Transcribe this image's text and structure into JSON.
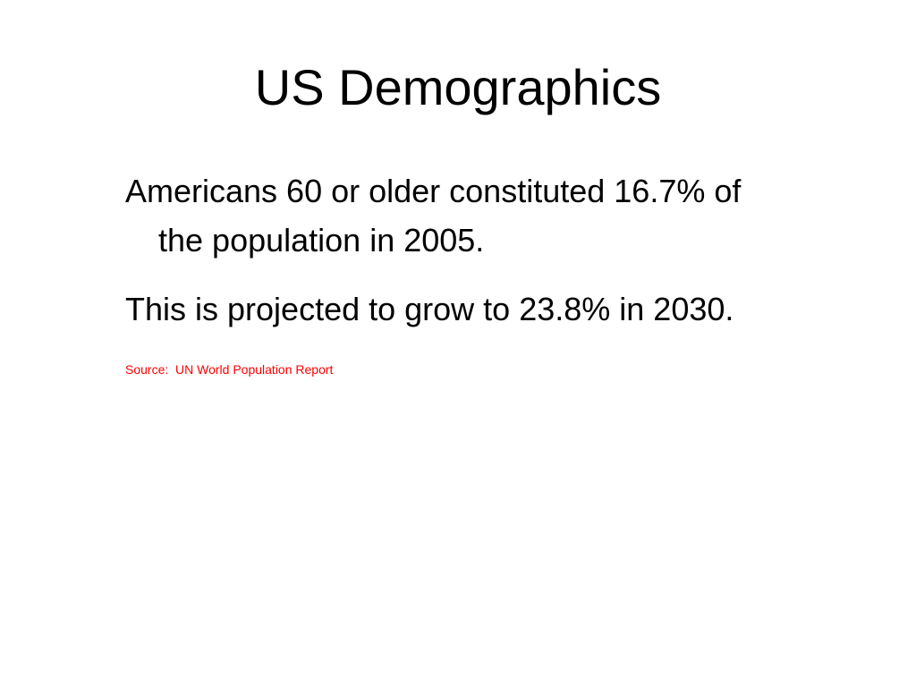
{
  "slide": {
    "title": "US Demographics",
    "paragraphs": [
      "Americans 60 or older constituted 16.7% of the population in 2005.",
      "This is projected to grow to 23.8% in 2030."
    ],
    "source": "Source:  UN World Population Report"
  }
}
